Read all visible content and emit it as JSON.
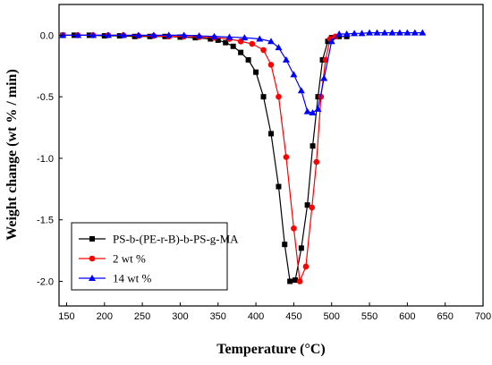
{
  "chart_data": {
    "type": "line",
    "xlabel": "Temperature (°C)",
    "ylabel": "Weight change (wt % / min)",
    "xlim": [
      140,
      700
    ],
    "ylim": [
      -2.2,
      0.25
    ],
    "xticks": [
      150,
      200,
      250,
      300,
      350,
      400,
      450,
      500,
      550,
      600,
      650,
      700
    ],
    "yticks": [
      0.0,
      -0.5,
      -1.0,
      -1.5,
      -2.0
    ],
    "ytick_labels": [
      "0.0",
      "-0.5",
      "-1.0",
      "-1.5",
      "-2.0"
    ],
    "grid": false,
    "legend_position": "bottom-left",
    "series": [
      {
        "name": "PS-b-(PE-r-B)-b-PS-g-MA",
        "color": "#000000",
        "marker": "square",
        "x": [
          145,
          160,
          180,
          200,
          220,
          240,
          260,
          280,
          300,
          320,
          340,
          350,
          360,
          370,
          380,
          390,
          400,
          410,
          420,
          430,
          438,
          445,
          452,
          460,
          468,
          475,
          482,
          488,
          495,
          500,
          510,
          520
        ],
        "y": [
          0.0,
          0.0,
          0.0,
          -0.005,
          -0.005,
          -0.01,
          -0.01,
          -0.01,
          -0.015,
          -0.02,
          -0.03,
          -0.04,
          -0.06,
          -0.09,
          -0.14,
          -0.2,
          -0.3,
          -0.5,
          -0.8,
          -1.23,
          -1.7,
          -2.0,
          -1.99,
          -1.73,
          -1.38,
          -0.9,
          -0.5,
          -0.2,
          -0.05,
          -0.02,
          -0.01,
          -0.01
        ]
      },
      {
        "name": "2 wt %",
        "color": "#ff0000",
        "marker": "circle",
        "x": [
          145,
          165,
          185,
          205,
          225,
          245,
          265,
          285,
          305,
          325,
          345,
          365,
          380,
          395,
          410,
          420,
          430,
          440,
          450,
          458,
          466,
          474,
          480,
          486,
          492,
          498,
          505
        ],
        "y": [
          0.0,
          0.0,
          0.0,
          0.0,
          0.0,
          -0.005,
          -0.005,
          -0.01,
          -0.01,
          -0.015,
          -0.02,
          -0.03,
          -0.05,
          -0.07,
          -0.12,
          -0.24,
          -0.5,
          -0.99,
          -1.57,
          -2.0,
          -1.88,
          -1.4,
          -1.03,
          -0.5,
          -0.2,
          -0.03,
          -0.01
        ]
      },
      {
        "name": "14 wt %",
        "color": "#0000ff",
        "marker": "triangle",
        "x": [
          145,
          165,
          185,
          205,
          225,
          245,
          265,
          285,
          305,
          325,
          345,
          365,
          385,
          405,
          420,
          430,
          440,
          450,
          460,
          468,
          475,
          482,
          490,
          500,
          510,
          520,
          530,
          540,
          550,
          560,
          570,
          580,
          590,
          600,
          610,
          620
        ],
        "y": [
          0.0,
          0.0,
          0.0,
          0.0,
          0.0,
          0.0,
          0.0,
          0.0,
          0.0,
          -0.005,
          -0.01,
          -0.015,
          -0.02,
          -0.03,
          -0.05,
          -0.1,
          -0.2,
          -0.32,
          -0.45,
          -0.62,
          -0.63,
          -0.6,
          -0.35,
          -0.05,
          0.01,
          0.01,
          0.015,
          0.015,
          0.02,
          0.02,
          0.02,
          0.02,
          0.02,
          0.02,
          0.02,
          0.02
        ]
      }
    ]
  }
}
